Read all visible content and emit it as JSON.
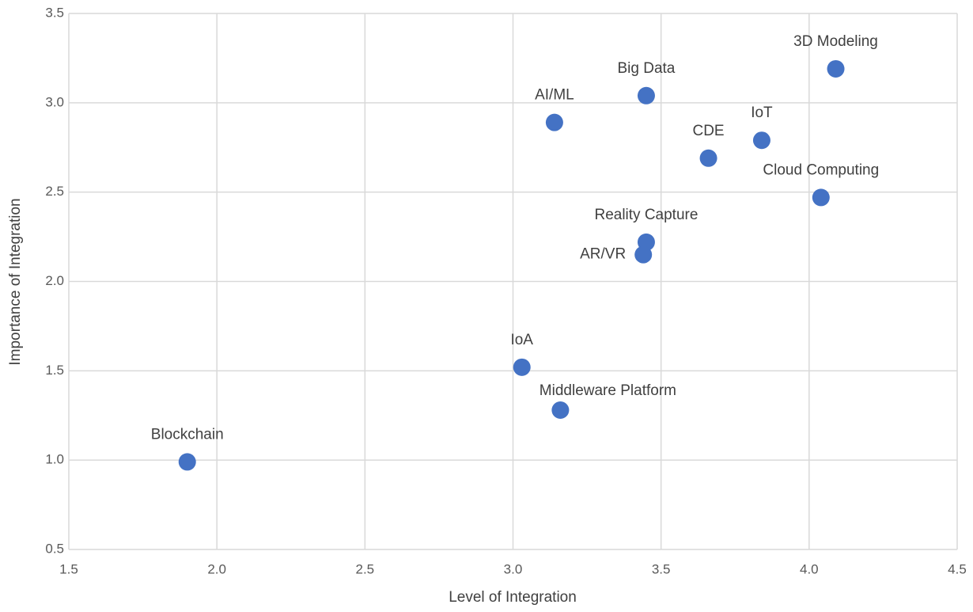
{
  "chart_data": {
    "type": "scatter",
    "x_label": "Level of Integration",
    "y_label": "Importance of Integration",
    "color": "#4472c4",
    "grid": true,
    "xlim": [
      1.5,
      4.5
    ],
    "xticks": [
      1.5,
      {
        "value": 2,
        "label": "2.0"
      },
      2.5,
      {
        "value": 3,
        "label": "3.0"
      },
      3.5,
      {
        "value": 4,
        "label": "4.0"
      },
      4.5
    ],
    "ylim": [
      0.5,
      3.5
    ],
    "yticks": [
      0.5,
      {
        "value": 1,
        "label": "1.0"
      },
      1.5,
      {
        "value": 2,
        "label": "2.0"
      },
      2.5,
      {
        "value": 3,
        "label": "3.0"
      },
      3.5
    ],
    "points": [
      {
        "label": "3D Modeling",
        "x": 4.09,
        "y": 3.19
      },
      {
        "label": "Big Data",
        "x": 3.45,
        "y": 3.04
      },
      {
        "label": "AI/ML",
        "x": 3.14,
        "y": 2.89
      },
      {
        "label": "CDE",
        "x": 3.66,
        "y": 2.69
      },
      {
        "label": "IoT",
        "x": 3.84,
        "y": 2.79
      },
      {
        "label": "Cloud Computing",
        "x": 4.04,
        "y": 2.47
      },
      {
        "label": "Reality Capture",
        "x": 3.45,
        "y": 2.22
      },
      {
        "label": "AR/VR",
        "x": 3.44,
        "y": 2.15
      },
      {
        "label": "IoA",
        "x": 3.03,
        "y": 1.52
      },
      {
        "label": "Middleware Platform",
        "x": 3.16,
        "y": 1.28
      },
      {
        "label": "Blockchain",
        "x": 1.9,
        "y": 0.99
      }
    ]
  }
}
